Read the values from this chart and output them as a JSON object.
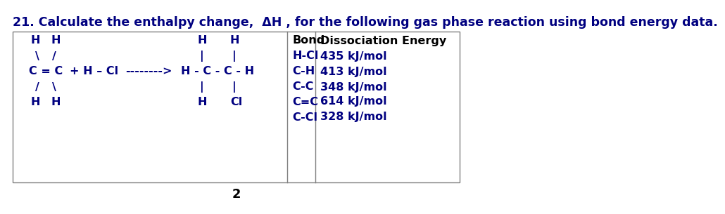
{
  "title": "21. Calculate the enthalpy change,  ΔH , for the following gas phase reaction using bond energy data.",
  "title_fontsize": 12.5,
  "title_color": "#000080",
  "background_color": "#ffffff",
  "box_color": "#808080",
  "page_number": "2",
  "bond_header": [
    "Bond",
    "Dissociation Energy"
  ],
  "bond_rows": [
    [
      "H-Cl",
      "435 kJ/mol"
    ],
    [
      "C-H",
      "413 kJ/mol"
    ],
    [
      "C-C",
      "348 kJ/mol"
    ],
    [
      "C=C",
      "614 kJ/mol"
    ],
    [
      "C-Cl",
      "328 kJ/mol"
    ]
  ],
  "font_family": "DejaVu Sans",
  "text_color": "#000080",
  "header_color": "#000000",
  "fs": 11.5
}
